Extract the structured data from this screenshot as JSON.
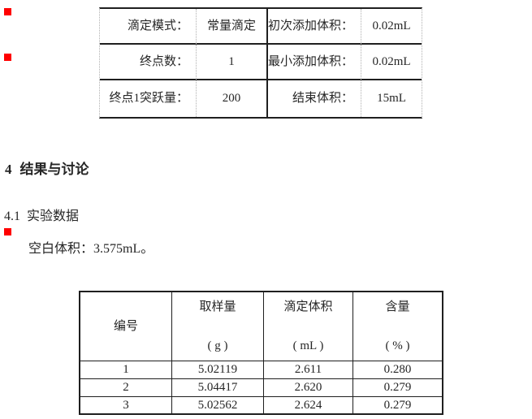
{
  "colors": {
    "marker": "#ff0000",
    "text": "#262626",
    "border": "#1f1f1f"
  },
  "parameters_table": {
    "rows": [
      {
        "label1": "滴定模式：",
        "value1": "常量滴定",
        "label2": "初次添加体积：",
        "value2": "0.02mL"
      },
      {
        "label1": "终点数：",
        "value1": "1",
        "label2": "最小添加体积：",
        "value2": "0.02mL"
      },
      {
        "label1": "终点1突跃量：",
        "value1": "200",
        "label2": "结束体积：",
        "value2": "15mL"
      }
    ]
  },
  "sections": {
    "heading_number": "4",
    "heading_title": "结果与讨论",
    "sub_number": "4.1",
    "sub_title": "实验数据",
    "body_line": "空白体积：3.575mL。"
  },
  "results_table": {
    "headers": [
      {
        "name": "编号",
        "unit": ""
      },
      {
        "name": "取样量",
        "unit": "( g )"
      },
      {
        "name": "滴定体积",
        "unit": "( mL )"
      },
      {
        "name": "含量",
        "unit": "( % )"
      }
    ],
    "rows": [
      [
        "1",
        "5.02119",
        "2.611",
        "0.280"
      ],
      [
        "2",
        "5.04417",
        "2.620",
        "0.279"
      ],
      [
        "3",
        "5.02562",
        "2.624",
        "0.279"
      ]
    ]
  }
}
